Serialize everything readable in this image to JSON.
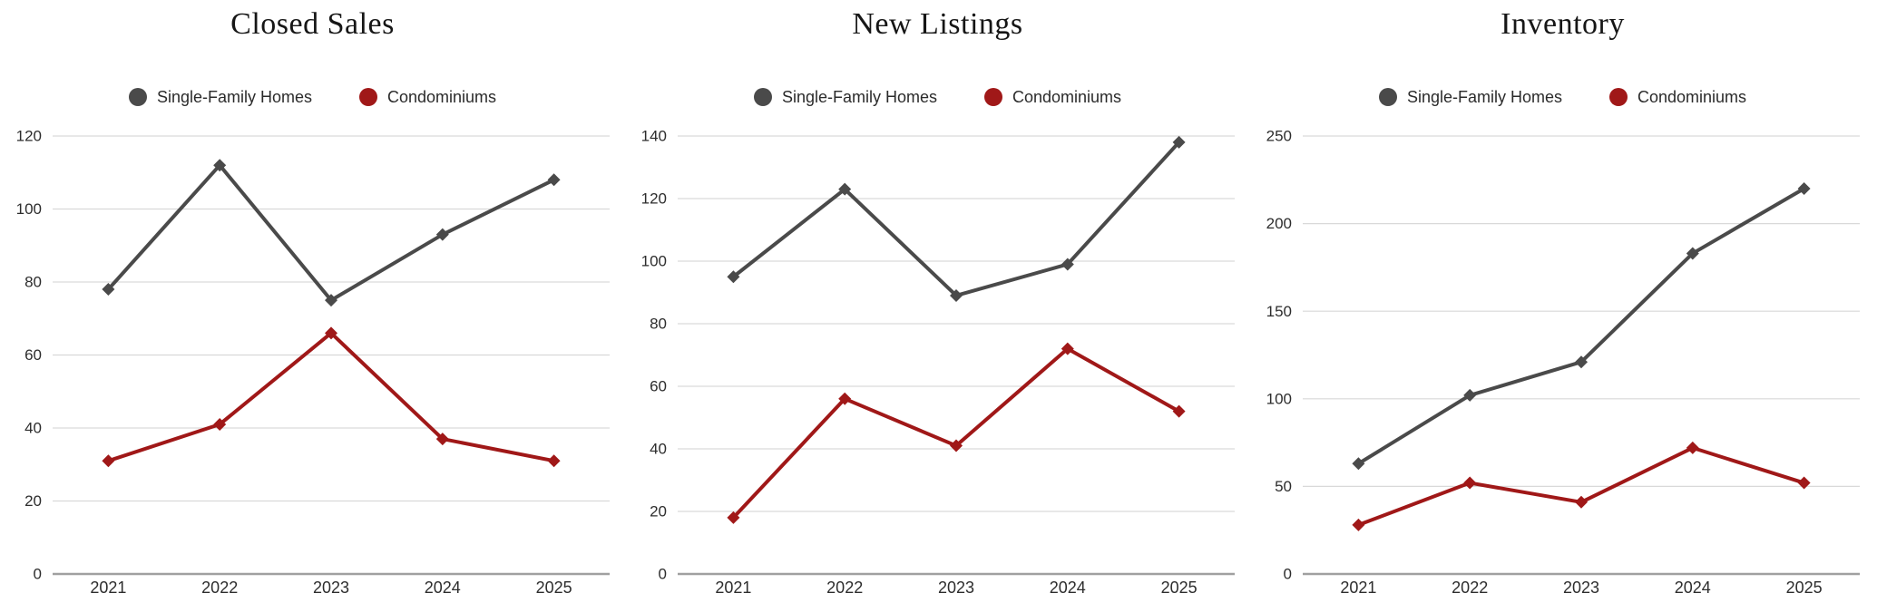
{
  "page": {
    "background": "#ffffff",
    "description_colors": {
      "gridline": "#d9d9d9",
      "zero_axis": "#a0a0a0",
      "tick_label": "#2d2d2d",
      "title_text": "#161616",
      "single_family": "#4a4a4a",
      "condominium": "#a01818"
    }
  },
  "chart_data": [
    {
      "type": "line",
      "title": "Closed Sales",
      "x": [
        "2021",
        "2022",
        "2023",
        "2024",
        "2025"
      ],
      "series": [
        {
          "name": "Single-Family Homes",
          "color": "#4a4a4a",
          "values": [
            78,
            112,
            75,
            93,
            108
          ]
        },
        {
          "name": "Condominiums",
          "color": "#a01818",
          "values": [
            31,
            41,
            66,
            37,
            31
          ]
        }
      ],
      "ylim": [
        0,
        120
      ],
      "yticks": [
        0,
        20,
        40,
        60,
        80,
        100,
        120
      ],
      "grid": true,
      "marker": "diamond",
      "legend_position": "top"
    },
    {
      "type": "line",
      "title": "New Listings",
      "x": [
        "2021",
        "2022",
        "2023",
        "2024",
        "2025"
      ],
      "series": [
        {
          "name": "Single-Family Homes",
          "color": "#4a4a4a",
          "values": [
            95,
            123,
            89,
            99,
            138
          ]
        },
        {
          "name": "Condominiums",
          "color": "#a01818",
          "values": [
            18,
            56,
            41,
            72,
            52
          ]
        }
      ],
      "ylim": [
        0,
        140
      ],
      "yticks": [
        0,
        20,
        40,
        60,
        80,
        100,
        120,
        140
      ],
      "grid": true,
      "marker": "diamond",
      "legend_position": "top"
    },
    {
      "type": "line",
      "title": "Inventory",
      "x": [
        "2021",
        "2022",
        "2023",
        "2024",
        "2025"
      ],
      "series": [
        {
          "name": "Single-Family Homes",
          "color": "#4a4a4a",
          "values": [
            63,
            102,
            121,
            183,
            220
          ]
        },
        {
          "name": "Condominiums",
          "color": "#a01818",
          "values": [
            28,
            52,
            41,
            72,
            52
          ]
        }
      ],
      "ylim": [
        0,
        250
      ],
      "yticks": [
        0,
        50,
        100,
        150,
        200,
        250
      ],
      "grid": true,
      "marker": "diamond",
      "legend_position": "top"
    }
  ]
}
